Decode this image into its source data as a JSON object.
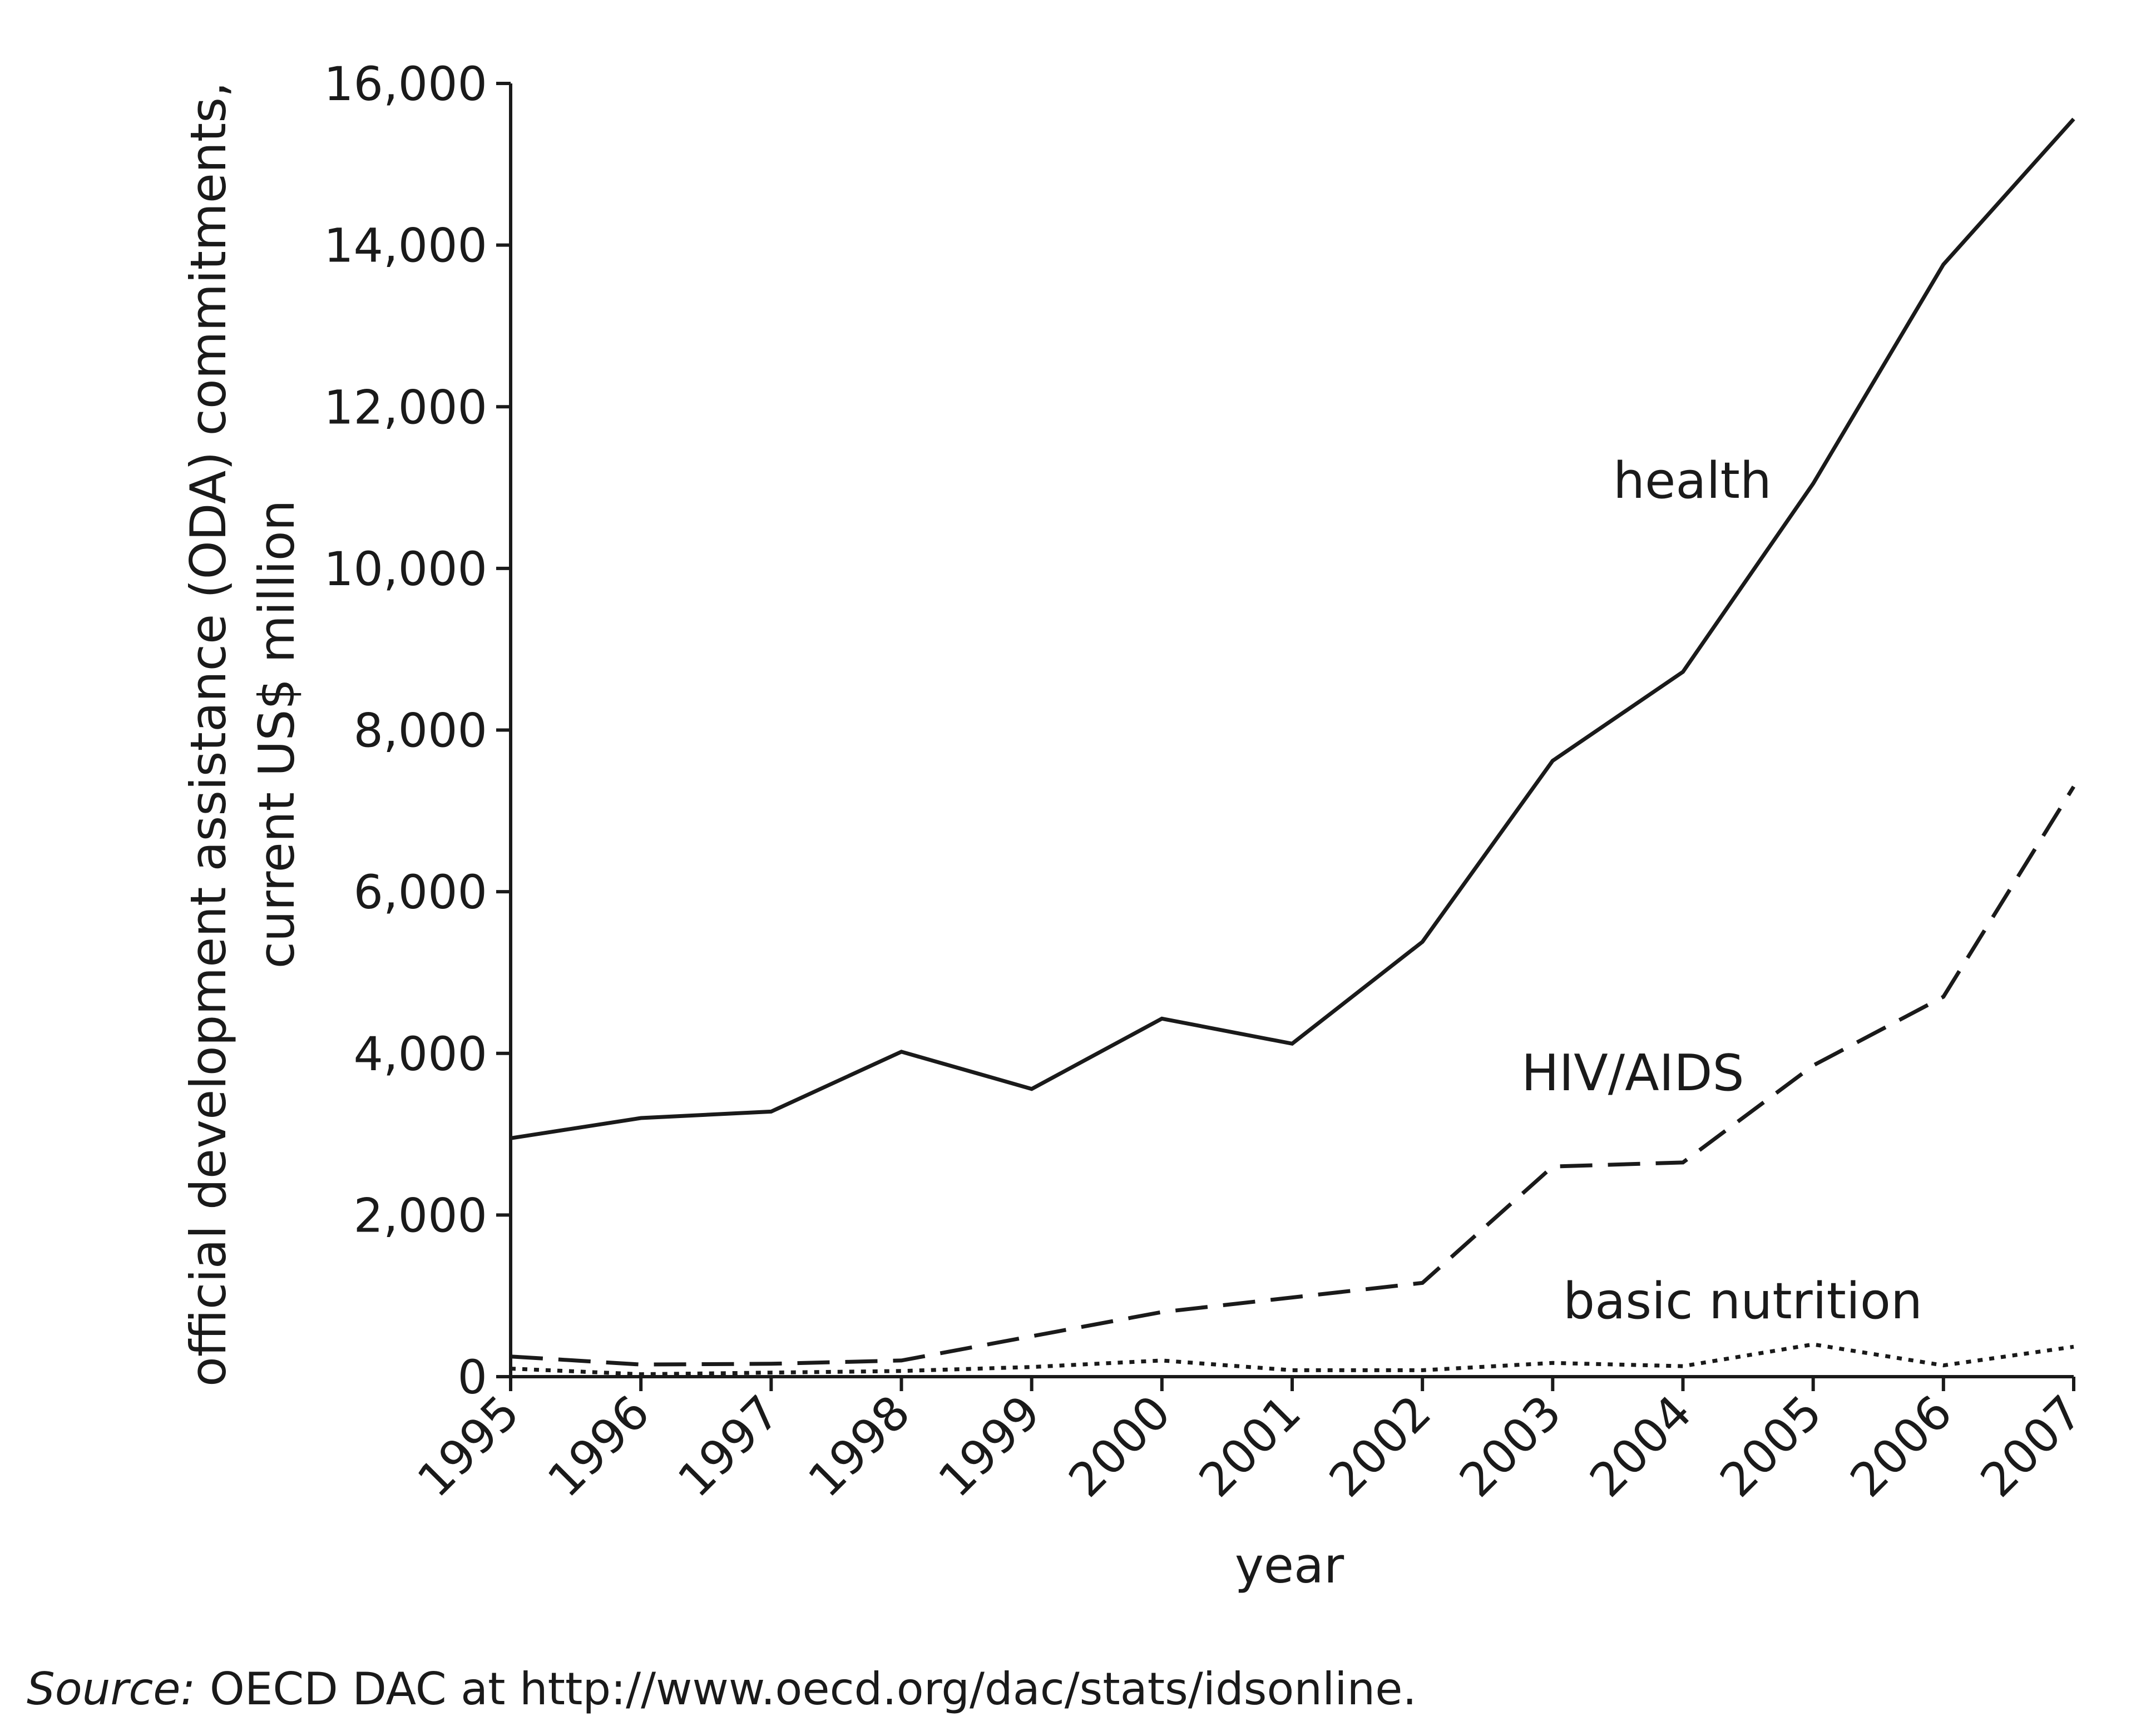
{
  "chart_data": {
    "type": "line",
    "title": "",
    "xlabel": "year",
    "ylabel": [
      "official development assistance (ODA) commitments,",
      "current US$ million"
    ],
    "x": [
      1995,
      1996,
      1997,
      1998,
      1999,
      2000,
      2001,
      2002,
      2003,
      2004,
      2005,
      2006,
      2007
    ],
    "x_tick_labels": [
      "1995",
      "1996",
      "1997",
      "1998",
      "1999",
      "2000",
      "2001",
      "2002",
      "2003",
      "2004",
      "2005",
      "2006",
      "2007"
    ],
    "ylim": [
      0,
      16000
    ],
    "y_ticks": [
      0,
      2000,
      4000,
      6000,
      8000,
      10000,
      12000,
      14000,
      16000
    ],
    "y_tick_labels": [
      "0",
      "2,000",
      "4,000",
      "6,000",
      "8,000",
      "10,000",
      "12,000",
      "14,000",
      "16,000"
    ],
    "grid": false,
    "series": [
      {
        "name": "health",
        "style": "solid",
        "values": [
          2950,
          3200,
          3280,
          4020,
          3560,
          4430,
          4120,
          5380,
          7620,
          8720,
          11050,
          13760,
          15560
        ]
      },
      {
        "name": "HIV/AIDS",
        "style": "dashed",
        "values": [
          250,
          150,
          160,
          200,
          500,
          800,
          980,
          1160,
          2600,
          2650,
          3850,
          4700,
          7300
        ]
      },
      {
        "name": "basic nutrition",
        "style": "dotted",
        "values": [
          100,
          30,
          50,
          70,
          120,
          200,
          80,
          80,
          170,
          130,
          400,
          140,
          370
        ]
      }
    ],
    "colors": {
      "line": "#1a1a1a",
      "axis": "#1a1a1a"
    }
  },
  "source": {
    "label": "Source:",
    "text": " OECD DAC at http://www.oecd.org/dac/stats/idsonline."
  }
}
